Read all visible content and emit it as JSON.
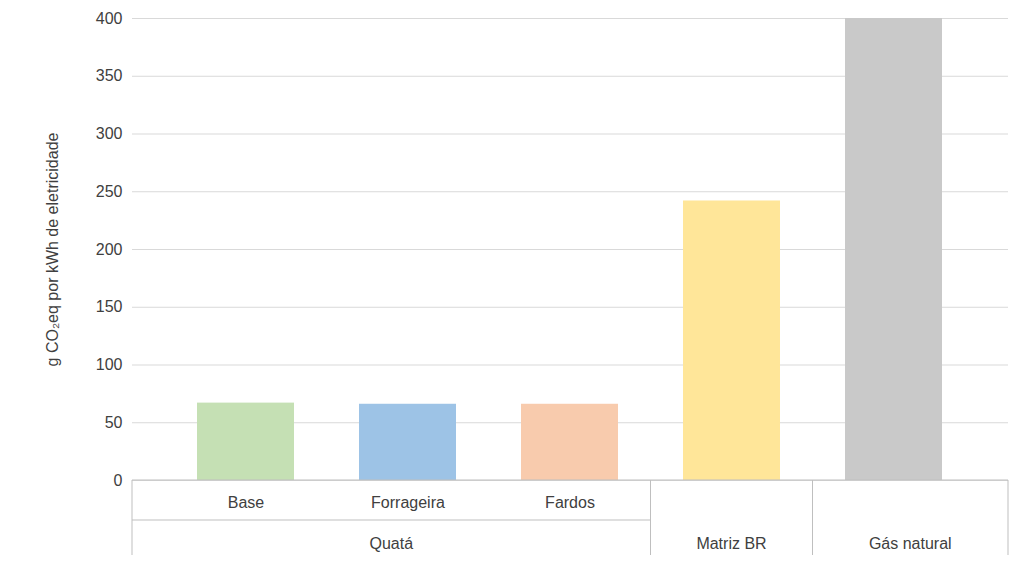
{
  "chart_data": {
    "type": "bar",
    "y_label": "g CO₂eq por kWh de eletricidade",
    "categories": [
      "Base",
      "Forrageira",
      "Fardos",
      null,
      null
    ],
    "groups": [
      "Quatá",
      "Quatá",
      "Quatá",
      "Matriz BR",
      "Gás natural"
    ],
    "values": [
      67,
      66,
      66,
      242,
      400
    ],
    "colors": [
      "#c5e0b4",
      "#9dc3e6",
      "#f8cbad",
      "#ffe699",
      "#c9c9c9"
    ],
    "ylim": [
      0,
      400
    ],
    "yticks": [
      0,
      50,
      100,
      150,
      200,
      250,
      300,
      350,
      400
    ],
    "grid": true
  }
}
